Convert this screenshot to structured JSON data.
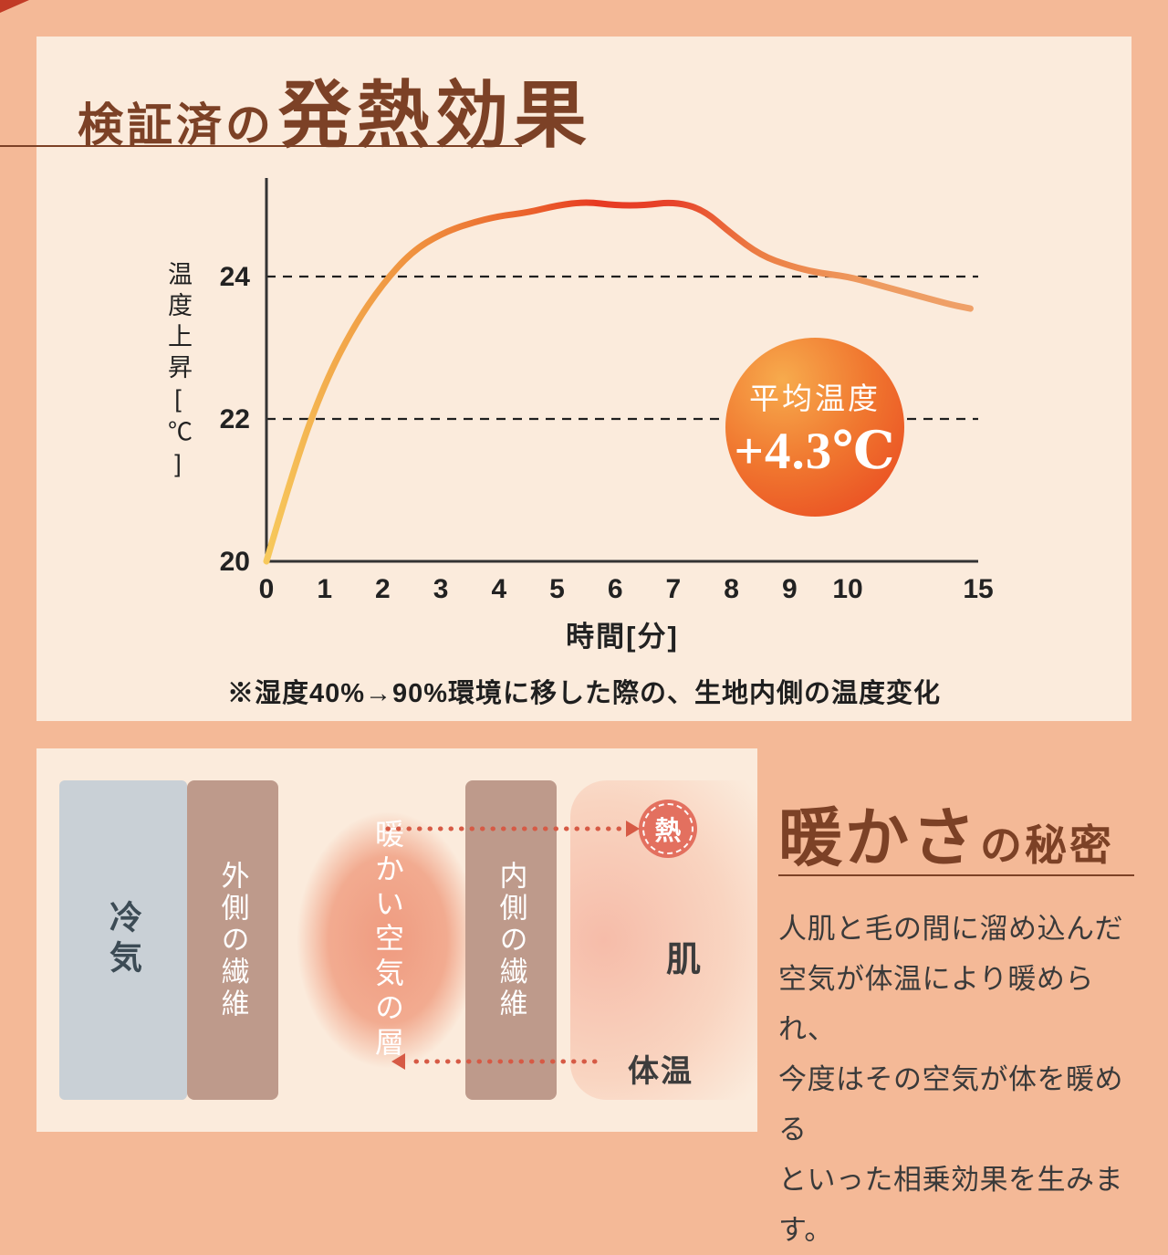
{
  "colors": {
    "page_bg": "#F4B997",
    "panel_bg": "#FBEBDC",
    "title_brown": "#7C4126",
    "text_dark": "#3A3A3A",
    "axis_color": "#333333",
    "gridline_color": "#1F1F1F",
    "arrow_red": "#D65A45",
    "cold_band": "#C9D0D6",
    "fiber_band": "#BE9A8B",
    "warm_blob": "#EF9B80",
    "heat_circle": "#E3705F",
    "badge_gradient": [
      "#F7AB4D",
      "#E8421F"
    ]
  },
  "heating_section": {
    "title_small": "検証済の",
    "title_large": "発熱効果",
    "note": "※湿度40%→90%環境に移した際の、生地内側の温度変化"
  },
  "chart_data": {
    "type": "line",
    "title": "検証済の発熱効果",
    "xlabel": "時間[分]",
    "ylabel": "温度上昇[℃]",
    "x": [
      0,
      0.5,
      1,
      1.5,
      2,
      2.5,
      3,
      3.5,
      4,
      4.5,
      5,
      5.5,
      6,
      6.5,
      7,
      7.5,
      8,
      8.5,
      9,
      9.5,
      10,
      11,
      12,
      13,
      14,
      14.7
    ],
    "y": [
      20,
      21.4,
      22.5,
      23.3,
      23.9,
      24.35,
      24.6,
      24.75,
      24.85,
      24.9,
      25.0,
      25.05,
      25.0,
      25.0,
      25.05,
      24.95,
      24.6,
      24.3,
      24.15,
      24.05,
      24.0,
      23.9,
      23.8,
      23.7,
      23.6,
      23.55
    ],
    "xticks": [
      0,
      1,
      2,
      3,
      4,
      5,
      6,
      7,
      8,
      9,
      10,
      15
    ],
    "yticks": [
      20,
      22,
      24
    ],
    "dashed_gridlines": [
      22,
      24
    ],
    "ylim": [
      20,
      25.4
    ],
    "x_axis_break_after": 10,
    "grid": "dashed horizontal at 22 and 24 only",
    "legend": "none",
    "annotation": {
      "label": "平均温度",
      "value": "+4.3℃"
    },
    "line_gradient": [
      {
        "offset": 0,
        "color": "#F7C95C"
      },
      {
        "offset": 0.1,
        "color": "#F2A94B"
      },
      {
        "offset": 0.22,
        "color": "#EF8F3E"
      },
      {
        "offset": 0.38,
        "color": "#EA5F2B"
      },
      {
        "offset": 0.47,
        "color": "#E73A22"
      },
      {
        "offset": 0.58,
        "color": "#E7432A"
      },
      {
        "offset": 0.7,
        "color": "#EC7E44"
      },
      {
        "offset": 0.85,
        "color": "#EE9A5F"
      },
      {
        "offset": 1,
        "color": "#EFA169"
      }
    ]
  },
  "warmth_section": {
    "title_large": "暖かさ",
    "title_small": "の秘密",
    "body_lines": [
      "人肌と毛の間に溜め込んだ",
      "空気が体温により暖められ、",
      "今度はその空気が体を暖める",
      "といった相乗効果を生みます。"
    ],
    "diagram": {
      "cold_air": "冷気",
      "outer_fiber": "外側の繊維",
      "warm_air_right": "暖かい",
      "warm_air_left": "空気の層",
      "inner_fiber": "内側の繊維",
      "skin": "肌",
      "heat": "熱",
      "body_temperature": "体温"
    }
  }
}
